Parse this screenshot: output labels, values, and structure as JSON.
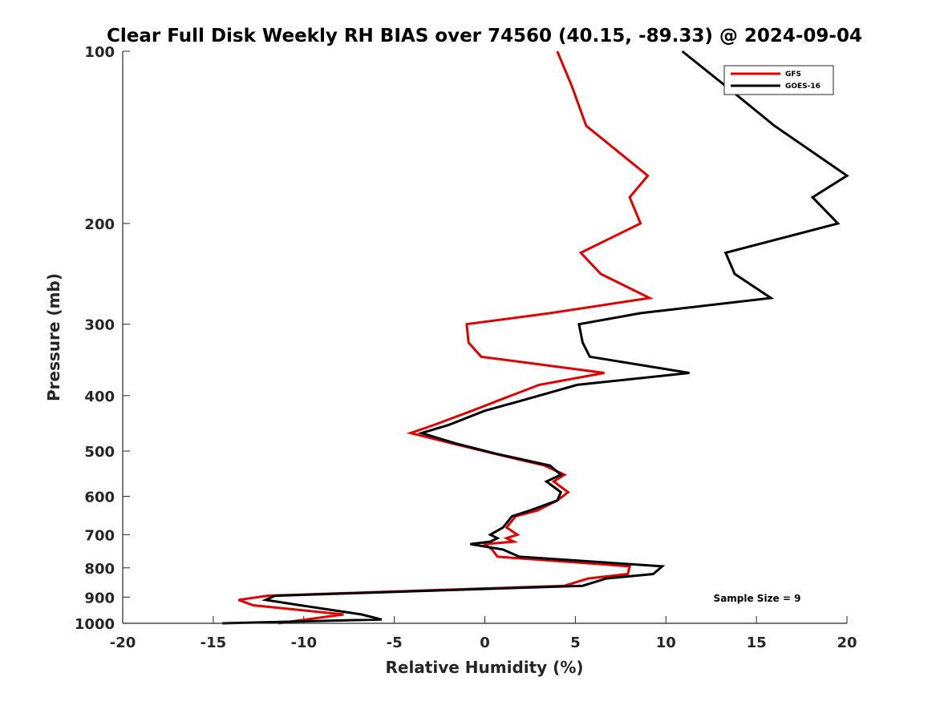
{
  "chart_data": {
    "type": "line",
    "title": "Clear Full Disk Weekly RH BIAS over 74560 (40.15, -89.33) @ 2024-09-04",
    "xlabel": "Relative Humidity (%)",
    "ylabel": "Pressure (mb)",
    "xlim": [
      -20,
      20
    ],
    "ylim": [
      100,
      1000
    ],
    "y_scale": "log",
    "y_reversed": true,
    "x_ticks": [
      -20,
      -15,
      -10,
      -5,
      0,
      5,
      10,
      15,
      20
    ],
    "x_tick_labels": [
      "-20",
      "-15",
      "-10",
      "-5",
      "0",
      "5",
      "10",
      "15",
      "20"
    ],
    "y_ticks": [
      100,
      200,
      300,
      400,
      500,
      600,
      700,
      800,
      900,
      1000
    ],
    "y_tick_labels": [
      "100",
      "200",
      "300",
      "400",
      "500",
      "600",
      "700",
      "800",
      "900",
      "1000"
    ],
    "grid": false,
    "legend_position": "top-right",
    "annotation": "Sample Size = 9",
    "series": [
      {
        "name": "GFS",
        "color": "#e00000",
        "points": [
          [
            4.0,
            100
          ],
          [
            4.8,
            115
          ],
          [
            5.6,
            135
          ],
          [
            9.0,
            165
          ],
          [
            8.0,
            180
          ],
          [
            8.6,
            200
          ],
          [
            5.3,
            225
          ],
          [
            6.4,
            245
          ],
          [
            9.1,
            270
          ],
          [
            3.6,
            287
          ],
          [
            -1.0,
            300
          ],
          [
            -0.9,
            323
          ],
          [
            -0.2,
            342
          ],
          [
            6.6,
            365
          ],
          [
            3.0,
            383
          ],
          [
            1.0,
            405
          ],
          [
            -0.7,
            425
          ],
          [
            -2.8,
            450
          ],
          [
            -4.1,
            465
          ],
          [
            -1.8,
            485
          ],
          [
            0.5,
            505
          ],
          [
            3.3,
            530
          ],
          [
            4.4,
            550
          ],
          [
            3.8,
            565
          ],
          [
            4.6,
            590
          ],
          [
            4.0,
            610
          ],
          [
            2.9,
            635
          ],
          [
            1.7,
            650
          ],
          [
            1.2,
            680
          ],
          [
            1.8,
            700
          ],
          [
            1.2,
            710
          ],
          [
            1.6,
            720
          ],
          [
            0.0,
            727
          ],
          [
            0.4,
            743
          ],
          [
            0.7,
            765
          ],
          [
            8.0,
            795
          ],
          [
            7.9,
            820
          ],
          [
            5.7,
            835
          ],
          [
            4.4,
            860
          ],
          [
            -12.0,
            895
          ],
          [
            -13.6,
            910
          ],
          [
            -12.8,
            930
          ],
          [
            -7.8,
            965
          ],
          [
            -11.4,
            1000
          ]
        ]
      },
      {
        "name": "GOES-16",
        "color": "#000000",
        "points": [
          [
            10.9,
            100
          ],
          [
            13.3,
            115
          ],
          [
            16.0,
            135
          ],
          [
            20.0,
            165
          ],
          [
            18.1,
            180
          ],
          [
            19.5,
            200
          ],
          [
            13.3,
            225
          ],
          [
            13.8,
            245
          ],
          [
            15.8,
            270
          ],
          [
            8.6,
            287
          ],
          [
            5.2,
            300
          ],
          [
            5.4,
            323
          ],
          [
            5.8,
            342
          ],
          [
            11.3,
            365
          ],
          [
            5.1,
            383
          ],
          [
            2.4,
            405
          ],
          [
            0.0,
            425
          ],
          [
            -2.0,
            450
          ],
          [
            -3.5,
            465
          ],
          [
            -1.6,
            485
          ],
          [
            0.6,
            505
          ],
          [
            3.6,
            530
          ],
          [
            4.2,
            550
          ],
          [
            3.4,
            565
          ],
          [
            4.2,
            590
          ],
          [
            4.0,
            610
          ],
          [
            2.5,
            635
          ],
          [
            1.5,
            650
          ],
          [
            1.0,
            680
          ],
          [
            0.3,
            700
          ],
          [
            0.7,
            710
          ],
          [
            0.3,
            720
          ],
          [
            -0.8,
            727
          ],
          [
            1.0,
            743
          ],
          [
            1.9,
            765
          ],
          [
            9.8,
            795
          ],
          [
            9.3,
            820
          ],
          [
            6.7,
            835
          ],
          [
            5.4,
            860
          ],
          [
            -11.6,
            895
          ],
          [
            -12.1,
            910
          ],
          [
            -10.2,
            930
          ],
          [
            -6.8,
            965
          ],
          [
            -5.7,
            985
          ],
          [
            -14.5,
            1000
          ]
        ]
      }
    ]
  }
}
